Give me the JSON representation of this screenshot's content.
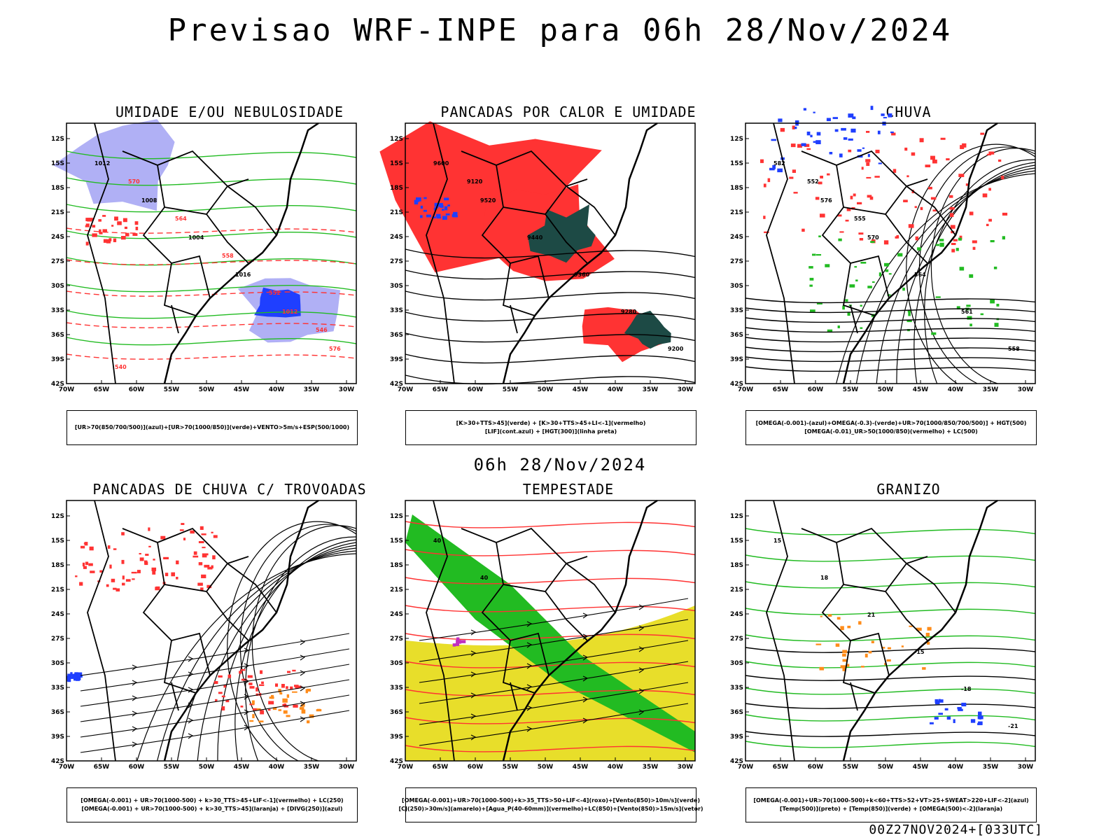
{
  "page": {
    "title": "Previsao WRF-INPE  para 06h 28/Nov/2024",
    "mid_date": "06h 28/Nov/2024",
    "footer": "00Z27NOV2024+[033UTC]"
  },
  "axes": {
    "lat_labels": [
      "12S",
      "15S",
      "18S",
      "21S",
      "24S",
      "27S",
      "30S",
      "33S",
      "36S",
      "39S",
      "42S"
    ],
    "lon_labels": [
      "70W",
      "65W",
      "60W",
      "55W",
      "50W",
      "45W",
      "40W",
      "35W",
      "30W"
    ]
  },
  "colors": {
    "green": "#22bb22",
    "red": "#ff3333",
    "blue": "#1f3fff",
    "lavender": "#b0b0f5",
    "yellow": "#e8de2a",
    "dark_teal": "#1d4a45",
    "orange": "#ff8c1a",
    "purple": "#c030c0"
  },
  "panels": [
    {
      "title": "UMIDADE E/OU NEBULOSIDADE",
      "legend": [
        "[UR>70(850/700/500)](azul)+[UR>70(1000/850)](verde)+VENTO>5m/s+ESP(500/1000)"
      ],
      "contour_labels": [
        "1012",
        "1008",
        "1004",
        "1016",
        "1012",
        "576",
        "570",
        "564",
        "558",
        "552",
        "546",
        "540"
      ]
    },
    {
      "title": "PANCADAS POR CALOR E UMIDADE",
      "legend": [
        "[K>30+TTS>45](verde)  +  [K>30+TTS>45+LI<-1](vermelho)",
        "[LIF](cont.azul)  +  [HGT(300)](linha preta)"
      ],
      "contour_labels": [
        "9600",
        "9520",
        "9440",
        "9360",
        "9280",
        "9200",
        "9120"
      ]
    },
    {
      "title": "CHUVA",
      "legend": [
        "[OMEGA(-0.001)-(azul)+OMEGA(-0.3)-(verde)+UR>70(1000/850/700/500)]  +  HGT(500)",
        "[OMEGA(-0.01)_UR>50(1000/850)(vermelho)  +  LC(500)"
      ],
      "contour_labels": [
        "582",
        "576",
        "570",
        "564",
        "561",
        "558",
        "552",
        "555"
      ]
    },
    {
      "title": "PANCADAS DE CHUVA C/ TROVOADAS",
      "legend": [
        "[OMEGA(-0.001)  +  UR>70(1000-500)  +  k>30_TTS>45+LIF<-1](vermelho)  +  LC(250)",
        "[OMEGA(-0.001)  +  UR>70(1000-500)  +  k>30_TTS>45](laranja)  +  [DIVG(250)](azul)"
      ],
      "contour_labels": []
    },
    {
      "title": "TEMPESTADE",
      "legend": [
        "[OMEGA(-0.001)+UR>70(1000-500)+k>35_TTS>50+LIF<-4](roxo)+[Vento(850)>10m/s](verde)",
        "[CJ(250)>30m/s](amarelo)+[Agua_P(40-60mm)](vermelho)+LC(850)+[Vento(850)>15m/s](vetor)"
      ],
      "contour_labels": [
        "40",
        "40"
      ]
    },
    {
      "title": "GRANIZO",
      "legend": [
        "[OMEGA(-0.001)+UR>70(1000-500)+k<60+TTS>52+VT>25+SWEAT>220+LIF<-2](azul)",
        "[Temp(500)](preto)  +  [Temp(850)](verde)  +  [OMEGA(500)<-2](laranja)"
      ],
      "contour_labels": [
        "15",
        "18",
        "21",
        "-15",
        "-18",
        "-21"
      ]
    }
  ]
}
